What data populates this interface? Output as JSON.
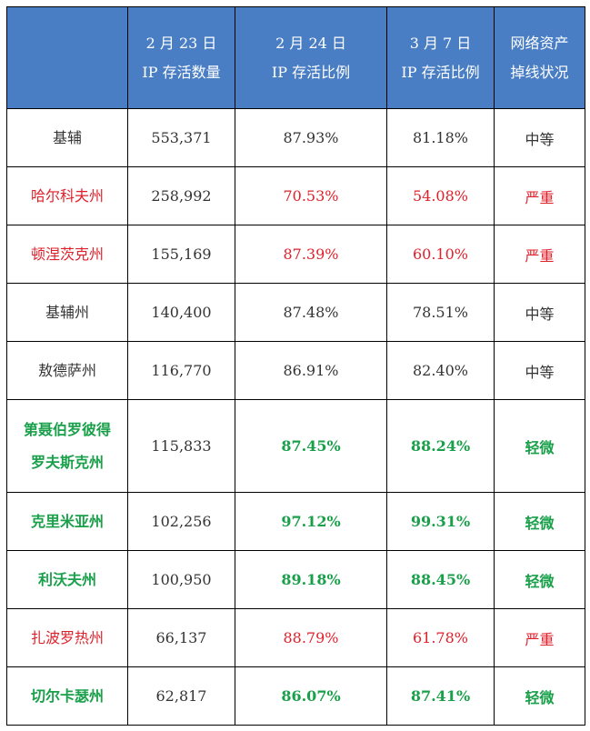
{
  "header": {
    "col0": "",
    "col1": [
      "2 月 23 日",
      "IP 存活数量"
    ],
    "col2": [
      "2 月 24 日",
      "IP 存活比例"
    ],
    "col3": [
      "3 月 7 日",
      "IP 存活比例"
    ],
    "col4": [
      "网络资产",
      "掉线状况"
    ]
  },
  "rows": [
    {
      "name": [
        "基辅"
      ],
      "count": "553,371",
      "feb24": "87.93%",
      "mar7": "81.18%",
      "status": "中等",
      "level": "normal"
    },
    {
      "name": [
        "哈尔科夫州"
      ],
      "count": "258,992",
      "feb24": "70.53%",
      "mar7": "54.08%",
      "status": "严重",
      "level": "severe"
    },
    {
      "name": [
        "顿涅茨克州"
      ],
      "count": "155,169",
      "feb24": "87.39%",
      "mar7": "60.10%",
      "status": "严重",
      "level": "severe"
    },
    {
      "name": [
        "基辅州"
      ],
      "count": "140,400",
      "feb24": "87.48%",
      "mar7": "78.51%",
      "status": "中等",
      "level": "normal"
    },
    {
      "name": [
        "敖德萨州"
      ],
      "count": "116,770",
      "feb24": "86.91%",
      "mar7": "82.40%",
      "status": "中等",
      "level": "normal"
    },
    {
      "name": [
        "第聂伯罗彼得",
        "罗夫斯克州"
      ],
      "count": "115,833",
      "feb24": "87.45%",
      "mar7": "88.24%",
      "status": "轻微",
      "level": "mild"
    },
    {
      "name": [
        "克里米亚州"
      ],
      "count": "102,256",
      "feb24": "97.12%",
      "mar7": "99.31%",
      "status": "轻微",
      "level": "mild"
    },
    {
      "name": [
        "利沃夫州"
      ],
      "count": "100,950",
      "feb24": "89.18%",
      "mar7": "88.45%",
      "status": "轻微",
      "level": "mild"
    },
    {
      "name": [
        "扎波罗热州"
      ],
      "count": "66,137",
      "feb24": "88.79%",
      "mar7": "61.78%",
      "status": "严重",
      "level": "severe"
    },
    {
      "name": [
        "切尔卡瑟州"
      ],
      "count": "62,817",
      "feb24": "86.07%",
      "mar7": "87.41%",
      "status": "轻微",
      "level": "mild"
    }
  ],
  "colors": {
    "header_bg": "#4a7ec4",
    "severe": "#e0202a",
    "mild": "#1aa04a",
    "normal": "#333333"
  }
}
